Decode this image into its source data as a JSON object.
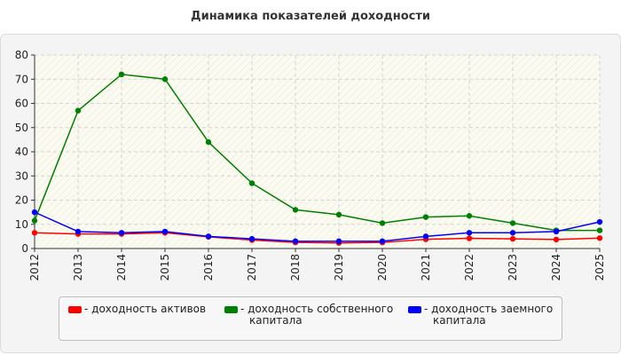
{
  "chart_data": {
    "type": "line",
    "title": "Динамика показателей доходности",
    "categories": [
      "2012",
      "2013",
      "2014",
      "2015",
      "2016",
      "2017",
      "2018",
      "2019",
      "2020",
      "2021",
      "2022",
      "2023",
      "2024",
      "2025"
    ],
    "ylim": [
      0,
      80
    ],
    "yticks": [
      0,
      10,
      20,
      30,
      40,
      50,
      60,
      70,
      80
    ],
    "grid": true,
    "legend_position": "bottom",
    "series": [
      {
        "name": "- доходность активов",
        "color": "#ff0000",
        "values": [
          6.5,
          6.0,
          6.0,
          6.5,
          4.8,
          3.5,
          2.5,
          2.3,
          2.5,
          3.8,
          4.2,
          4.0,
          3.7,
          4.3
        ]
      },
      {
        "name": "- доходность собственного капитала",
        "color": "#008000",
        "values": [
          11.5,
          57.0,
          72.0,
          70.0,
          44.0,
          27.0,
          16.0,
          14.0,
          10.5,
          13.0,
          13.5,
          10.5,
          7.5,
          7.5
        ]
      },
      {
        "name": "- доходность заемного капитала",
        "color": "#0000ff",
        "values": [
          15.0,
          7.0,
          6.5,
          7.0,
          5.0,
          4.0,
          3.0,
          3.0,
          3.0,
          5.0,
          6.5,
          6.5,
          7.0,
          11.0
        ]
      }
    ]
  }
}
